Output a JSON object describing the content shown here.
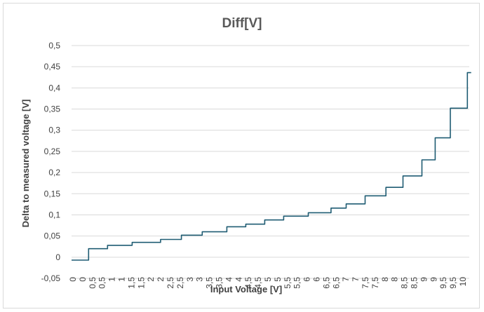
{
  "chart_data": {
    "type": "line",
    "title": "Diff[V]",
    "xlabel": "Input Voltage [V]",
    "ylabel": "Delta to measured voltage [V]",
    "xlim": [
      0,
      10.5
    ],
    "ylim": [
      -0.05,
      0.5
    ],
    "grid": true,
    "legend": "none",
    "colors": {
      "series": "#1f5c73",
      "grid": "#d9d9d9",
      "text": "#404040",
      "title": "#595959"
    },
    "x_tick_labels": [
      "0",
      "0",
      "0,5",
      "0,5",
      "1",
      "1",
      "1,5",
      "1,5",
      "2",
      "2",
      "2,5",
      "2,5",
      "3",
      "3",
      "3,5",
      "3,5",
      "4",
      "4",
      "4,5",
      "4,5",
      "5",
      "5",
      "5,5",
      "5,5",
      "6",
      "6",
      "6,5",
      "6,5",
      "7",
      "7",
      "7,5",
      "7,5",
      "8",
      "8",
      "8,5",
      "8,5",
      "9",
      "9",
      "9,5",
      "9,5",
      "10"
    ],
    "y_ticks": [
      {
        "value": -0.05,
        "label": "-0,05"
      },
      {
        "value": 0,
        "label": "0"
      },
      {
        "value": 0.05,
        "label": "0,05"
      },
      {
        "value": 0.1,
        "label": "0,1"
      },
      {
        "value": 0.15,
        "label": "0,15"
      },
      {
        "value": 0.2,
        "label": "0,2"
      },
      {
        "value": 0.25,
        "label": "0,25"
      },
      {
        "value": 0.3,
        "label": "0,3"
      },
      {
        "value": 0.35,
        "label": "0,35"
      },
      {
        "value": 0.4,
        "label": "0,4"
      },
      {
        "value": 0.45,
        "label": "0,45"
      },
      {
        "value": 0.5,
        "label": "0,5"
      }
    ],
    "series": [
      {
        "name": "Diff[V]",
        "x": [
          0.0,
          0.45,
          0.45,
          0.95,
          0.95,
          1.6,
          1.6,
          2.35,
          2.35,
          2.9,
          2.9,
          3.45,
          3.45,
          4.1,
          4.1,
          4.6,
          4.6,
          5.1,
          5.1,
          5.6,
          5.6,
          6.25,
          6.25,
          6.85,
          6.85,
          7.25,
          7.25,
          7.75,
          7.75,
          8.3,
          8.3,
          8.75,
          8.75,
          9.25,
          9.25,
          9.6,
          9.6,
          10.0,
          10.0,
          10.45,
          10.45,
          10.55
        ],
        "y": [
          -0.007,
          -0.007,
          0.02,
          0.02,
          0.028,
          0.028,
          0.035,
          0.035,
          0.042,
          0.042,
          0.052,
          0.052,
          0.06,
          0.06,
          0.072,
          0.072,
          0.078,
          0.078,
          0.088,
          0.088,
          0.097,
          0.097,
          0.105,
          0.105,
          0.116,
          0.116,
          0.126,
          0.126,
          0.145,
          0.145,
          0.165,
          0.165,
          0.192,
          0.192,
          0.23,
          0.23,
          0.282,
          0.282,
          0.352,
          0.352,
          0.436,
          0.436
        ]
      }
    ]
  }
}
